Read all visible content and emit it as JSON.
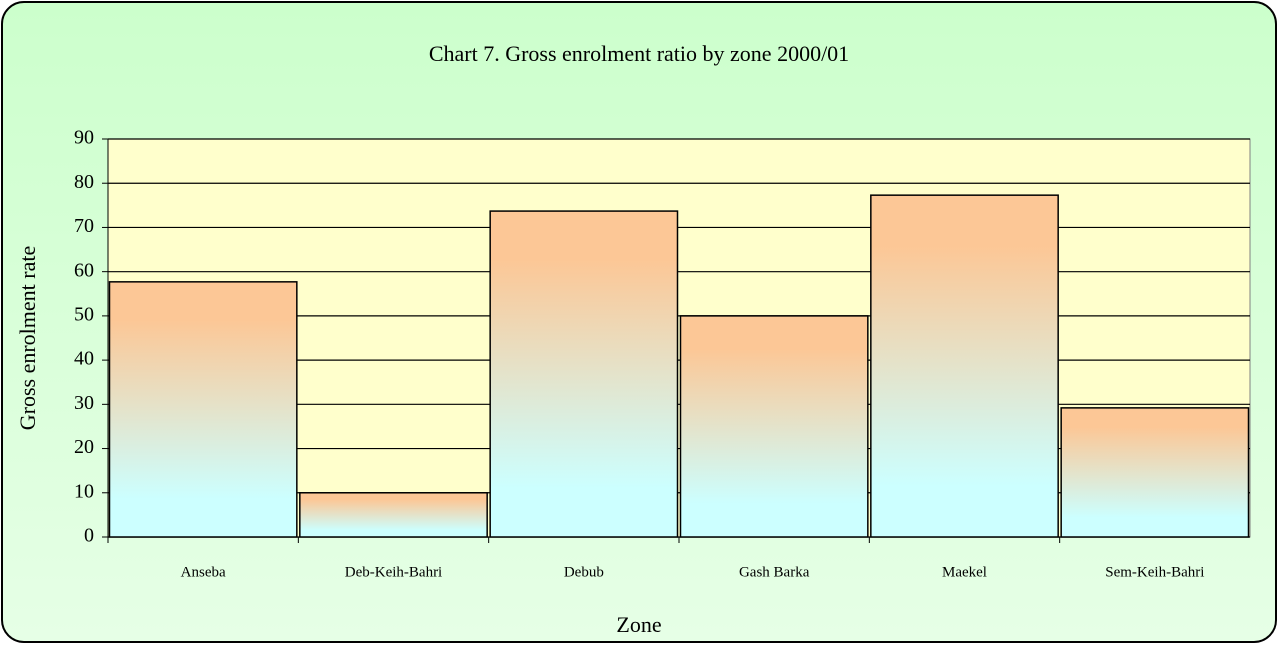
{
  "chart_data": {
    "type": "bar",
    "title": "Chart 7. Gross enrolment ratio by zone 2000/01",
    "x_label": "Zone",
    "y_label": "Gross enrolment rate",
    "categories": [
      "Anseba",
      "Deb-Keih-Bahri",
      "Debub",
      "Gash Barka",
      "Maekel",
      "Sem-Keih-Bahri"
    ],
    "values": [
      57.7,
      10,
      73.7,
      50,
      77.3,
      29.2
    ],
    "color": [
      "#fcc796",
      "#ccffff"
    ],
    "ylim": [
      0,
      90
    ],
    "yticks": [
      0,
      10,
      20,
      30,
      40,
      50,
      60,
      70,
      80,
      90
    ],
    "grid": true
  }
}
